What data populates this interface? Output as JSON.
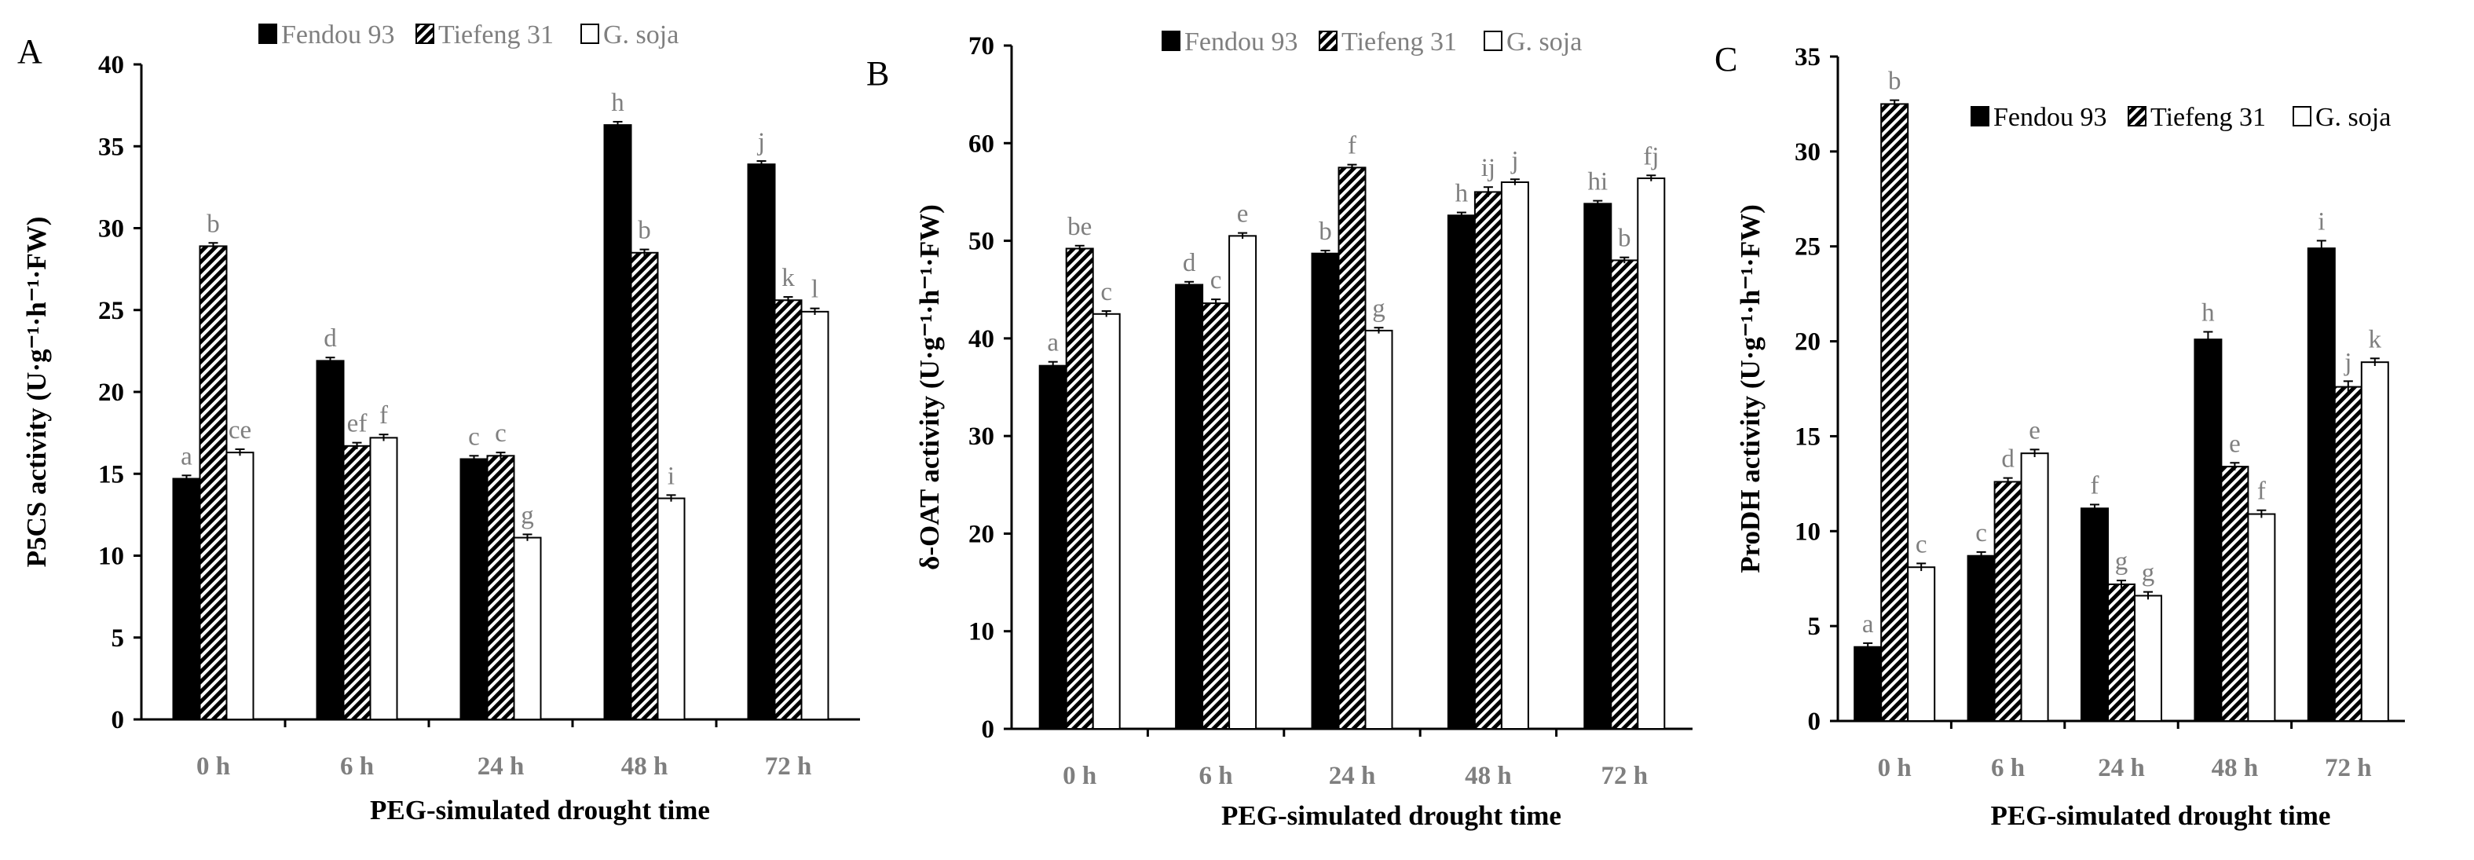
{
  "figure": {
    "colors": {
      "Fendou 93": "#000000",
      "Tiefeng 31": "hatch",
      "G. soja": "#ffffff"
    }
  },
  "chart_data": [
    {
      "panel": "A",
      "type": "bar",
      "xlabel": "PEG-simulated drought time",
      "ylabel": "P5CS activity (U·g⁻¹·h⁻¹·FW)",
      "ylim": [
        0,
        40
      ],
      "yticks": [
        0,
        5,
        10,
        15,
        20,
        25,
        30,
        35,
        40
      ],
      "categories": [
        "0 h",
        "6 h",
        "24 h",
        "48 h",
        "72 h"
      ],
      "legend_position": "top-center",
      "series": [
        {
          "name": "Fendou 93",
          "values": [
            14.7,
            21.9,
            15.9,
            36.3,
            33.9
          ],
          "errors": [
            0.2,
            0.2,
            0.2,
            0.2,
            0.2
          ],
          "labels": [
            "a",
            "d",
            "c",
            "h",
            "j"
          ]
        },
        {
          "name": "Tiefeng 31",
          "values": [
            28.9,
            16.7,
            16.1,
            28.5,
            25.6
          ],
          "errors": [
            0.2,
            0.2,
            0.2,
            0.2,
            0.2
          ],
          "labels": [
            "b",
            "ef",
            "c",
            "b",
            "k"
          ]
        },
        {
          "name": "G. soja",
          "values": [
            16.3,
            17.2,
            11.1,
            13.5,
            24.9
          ],
          "errors": [
            0.2,
            0.2,
            0.2,
            0.2,
            0.2
          ],
          "labels": [
            "ce",
            "f",
            "g",
            "i",
            "l"
          ]
        }
      ]
    },
    {
      "panel": "B",
      "type": "bar",
      "xlabel": "PEG-simulated drought time",
      "ylabel": "δ-OAT activity (U·g⁻¹·h⁻¹·FW)",
      "ylim": [
        0,
        70
      ],
      "yticks": [
        0,
        10,
        20,
        30,
        40,
        50,
        60,
        70
      ],
      "categories": [
        "0 h",
        "6 h",
        "24 h",
        "48 h",
        "72 h"
      ],
      "legend_position": "top-center",
      "series": [
        {
          "name": "Fendou 93",
          "values": [
            37.2,
            45.5,
            48.7,
            52.6,
            53.8
          ],
          "errors": [
            0.4,
            0.3,
            0.3,
            0.3,
            0.3
          ],
          "labels": [
            "a",
            "d",
            "b",
            "h",
            "hi"
          ]
        },
        {
          "name": "Tiefeng 31",
          "values": [
            49.2,
            43.6,
            57.5,
            55.0,
            48.0
          ],
          "errors": [
            0.3,
            0.4,
            0.3,
            0.5,
            0.3
          ],
          "labels": [
            "be",
            "c",
            "f",
            "ij",
            "b"
          ]
        },
        {
          "name": "G. soja",
          "values": [
            42.5,
            50.5,
            40.8,
            56.0,
            56.4
          ],
          "errors": [
            0.3,
            0.3,
            0.3,
            0.3,
            0.3
          ],
          "labels": [
            "c",
            "e",
            "g",
            "j",
            "fj"
          ]
        }
      ]
    },
    {
      "panel": "C",
      "type": "bar",
      "xlabel": "PEG-simulated drought time",
      "ylabel": "ProDH activity (U·g⁻¹·h⁻¹·FW)",
      "ylim": [
        0,
        35
      ],
      "yticks": [
        0,
        5,
        10,
        15,
        20,
        25,
        30,
        35
      ],
      "categories": [
        "0 h",
        "6 h",
        "24 h",
        "48 h",
        "72 h"
      ],
      "legend_position": "top-right",
      "series": [
        {
          "name": "Fendou 93",
          "values": [
            3.9,
            8.7,
            11.2,
            20.1,
            24.9
          ],
          "errors": [
            0.2,
            0.2,
            0.2,
            0.4,
            0.4
          ],
          "labels": [
            "a",
            "c",
            "f",
            "h",
            "i"
          ]
        },
        {
          "name": "Tiefeng 31",
          "values": [
            32.5,
            12.6,
            7.2,
            13.4,
            17.6
          ],
          "errors": [
            0.2,
            0.2,
            0.2,
            0.2,
            0.3
          ],
          "labels": [
            "b",
            "d",
            "g",
            "e",
            "j"
          ]
        },
        {
          "name": "G. soja",
          "values": [
            8.1,
            14.1,
            6.6,
            10.9,
            18.9
          ],
          "errors": [
            0.2,
            0.2,
            0.2,
            0.2,
            0.2
          ],
          "labels": [
            "c",
            "e",
            "g",
            "f",
            "k"
          ]
        }
      ]
    }
  ]
}
